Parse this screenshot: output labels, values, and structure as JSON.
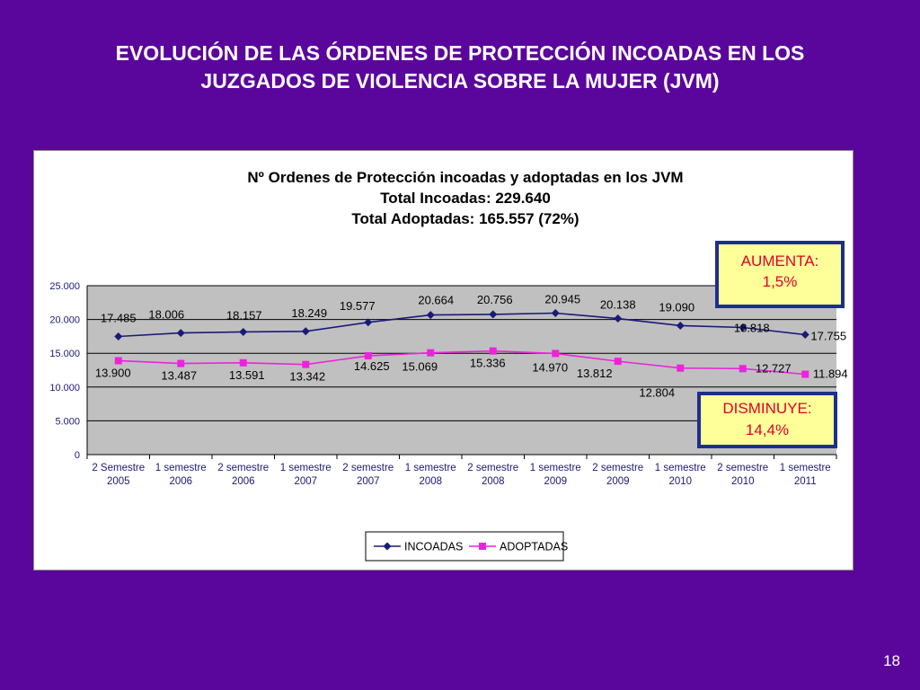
{
  "slide": {
    "title_line1": "EVOLUCIÓN DE LAS  ÓRDENES DE PROTECCIÓN INCOADAS EN LOS",
    "title_line2": "JUZGADOS DE VIOLENCIA SOBRE LA MUJER (JVM)",
    "page_number": "18",
    "background_color": "#5a069c"
  },
  "chart_data": {
    "type": "line",
    "title": "Nº Ordenes de Protección incoadas y adoptadas en los JVM",
    "subtitle_lines": [
      "Total Incoadas: 229.640",
      "Total Adoptadas: 165.557 (72%)"
    ],
    "categories": [
      [
        "2 Semestre",
        "2005"
      ],
      [
        "1 semestre",
        "2006"
      ],
      [
        "2 semestre",
        "2006"
      ],
      [
        "1 semestre",
        "2007"
      ],
      [
        "2 semestre",
        "2007"
      ],
      [
        "1 semestre",
        "2008"
      ],
      [
        "2 semestre",
        "2008"
      ],
      [
        "1 semestre",
        "2009"
      ],
      [
        "2 semestre",
        "2009"
      ],
      [
        "1 semestre",
        "2010"
      ],
      [
        "2 semestre",
        "2010"
      ],
      [
        "1 semestre",
        "2011"
      ]
    ],
    "ylim": [
      0,
      25000
    ],
    "yticks": [
      0,
      5000,
      10000,
      15000,
      20000,
      25000
    ],
    "ytick_labels": [
      "0",
      "5.000",
      "10.000",
      "15.000",
      "20.000",
      "25.000"
    ],
    "grid": true,
    "legend_position": "bottom",
    "series": [
      {
        "name": "INCOADAS",
        "color": "#1a1a78",
        "marker": "diamond",
        "values": [
          17485,
          18006,
          18157,
          18249,
          19577,
          20664,
          20756,
          20945,
          20138,
          19090,
          18818,
          17755
        ],
        "labels": [
          "17.485",
          "18.006",
          "18.157",
          "18.249",
          "19.577",
          "20.664",
          "20.756",
          "20.945",
          "20.138",
          "19.090",
          "18.818",
          "17.755"
        ]
      },
      {
        "name": "ADOPTADAS",
        "color": "#ee22dd",
        "marker": "square",
        "values": [
          13900,
          13487,
          13591,
          13342,
          14625,
          15069,
          15336,
          14970,
          13812,
          12804,
          12727,
          11894
        ],
        "labels": [
          "13.900",
          "13.487",
          "13.591",
          "13.342",
          "14.625",
          "15.069",
          "15.336",
          "14.970",
          "13.812",
          "12.804",
          "12.727",
          "11.894"
        ]
      }
    ],
    "annotations": [
      {
        "line1": "AUMENTA:",
        "line2": "1,5%",
        "text_color": "#e0002a",
        "fill": "#ffff99",
        "border": "#1e2e8c"
      },
      {
        "line1": "DISMINUYE:",
        "line2": "14,4%",
        "text_color": "#e0002a",
        "fill": "#ffff99",
        "border": "#1e2e8c"
      }
    ]
  }
}
